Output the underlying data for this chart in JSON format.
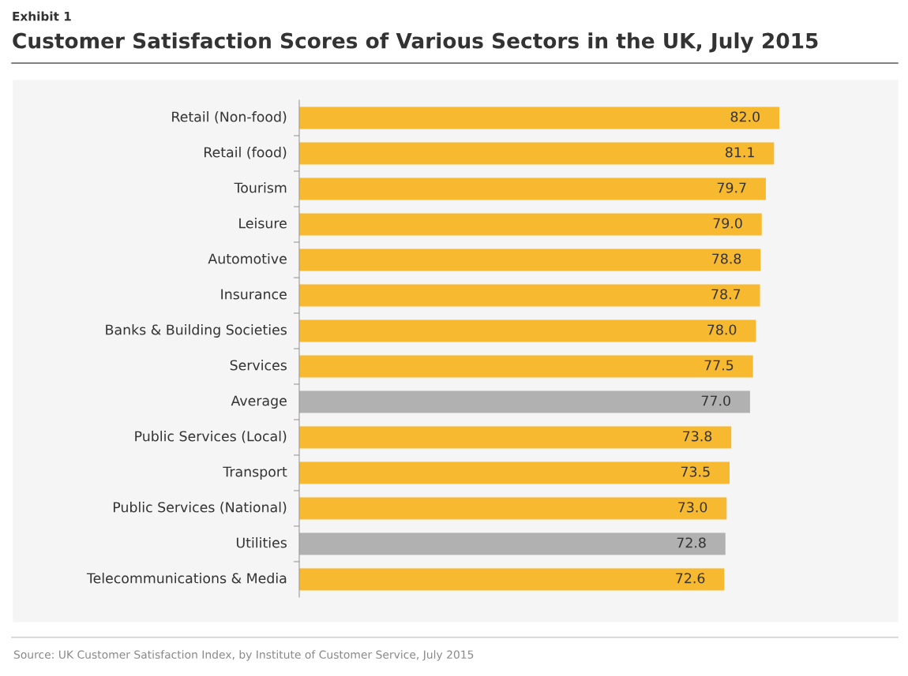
{
  "chart_data": {
    "type": "bar",
    "orientation": "horizontal",
    "subtitle": "Exhibit 1",
    "title": "Customer Satisfaction Scores of Various Sectors in the UK, July 2015",
    "categories": [
      "Retail (Non-food)",
      "Retail (food)",
      "Tourism",
      "Leisure",
      "Automotive",
      "Insurance",
      "Banks & Building Societies",
      "Services",
      "Average",
      "Public Services (Local)",
      "Transport",
      "Public Services (National)",
      "Utilities",
      "Telecommunications & Media"
    ],
    "values": [
      82.0,
      81.1,
      79.7,
      79.0,
      78.8,
      78.7,
      78.0,
      77.5,
      77.0,
      73.8,
      73.5,
      73.0,
      72.8,
      72.6
    ],
    "value_labels": [
      "82.0",
      "81.1",
      "79.7",
      "79.0",
      "78.8",
      "78.7",
      "78.0",
      "77.5",
      "77.0",
      "73.8",
      "73.5",
      "73.0",
      "72.8",
      "72.6"
    ],
    "colors": [
      "#f6b92f",
      "#f6b92f",
      "#f6b92f",
      "#f6b92f",
      "#f6b92f",
      "#f6b92f",
      "#f6b92f",
      "#f6b92f",
      "#b1b1b1",
      "#f6b92f",
      "#f6b92f",
      "#f6b92f",
      "#b1b1b1",
      "#f6b92f"
    ],
    "annotations": [
      "Source: UK Customer Satisfaction Index, by Institute of Customer Service, July 2015"
    ],
    "grid": false,
    "legend": false
  }
}
